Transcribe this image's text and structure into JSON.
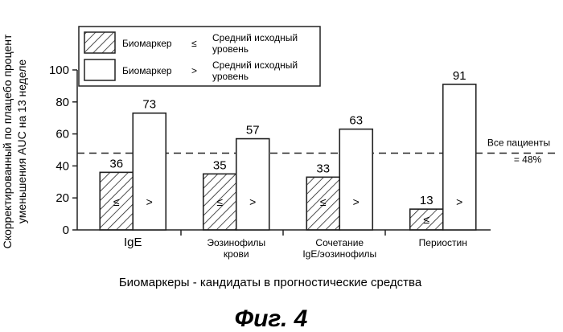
{
  "chart_data": {
    "type": "bar",
    "title": "",
    "xlabel": "Биомаркеры - кандидаты в прогностические средства",
    "ylabel": "Скорректированный по плацебо процент уменьшения AUC на 13 неделе",
    "ylim": [
      0,
      100
    ],
    "yticks": [
      0,
      20,
      40,
      60,
      80,
      100
    ],
    "categories": [
      [
        "IgE"
      ],
      [
        "Эозинофилы",
        "крови"
      ],
      [
        "Сочетание",
        "IgE/эозинофилы"
      ],
      [
        "Периостин"
      ]
    ],
    "series": [
      {
        "name": "Биомаркер ≤ Средний исходный уровень",
        "symbol": "≤",
        "pattern": "hatched",
        "values": [
          36,
          35,
          33,
          13
        ]
      },
      {
        "name": "Биомаркер > Средний исходный уровень",
        "symbol": ">",
        "pattern": "open",
        "values": [
          73,
          57,
          63,
          91
        ]
      }
    ],
    "legend": {
      "placement": "top-left",
      "items": [
        {
          "label": "Биомаркер",
          "symbol": "≤",
          "desc": [
            "Средний исходный",
            "уровень"
          ]
        },
        {
          "label": "Биомаркер",
          "symbol": ">",
          "desc": [
            "Средний исходный",
            "уровень"
          ]
        }
      ]
    },
    "reference_line": {
      "value": 48,
      "style": "dashed",
      "label": [
        "Все пациенты",
        "= 48%"
      ]
    },
    "grid": false
  },
  "caption": "Фиг. 4"
}
